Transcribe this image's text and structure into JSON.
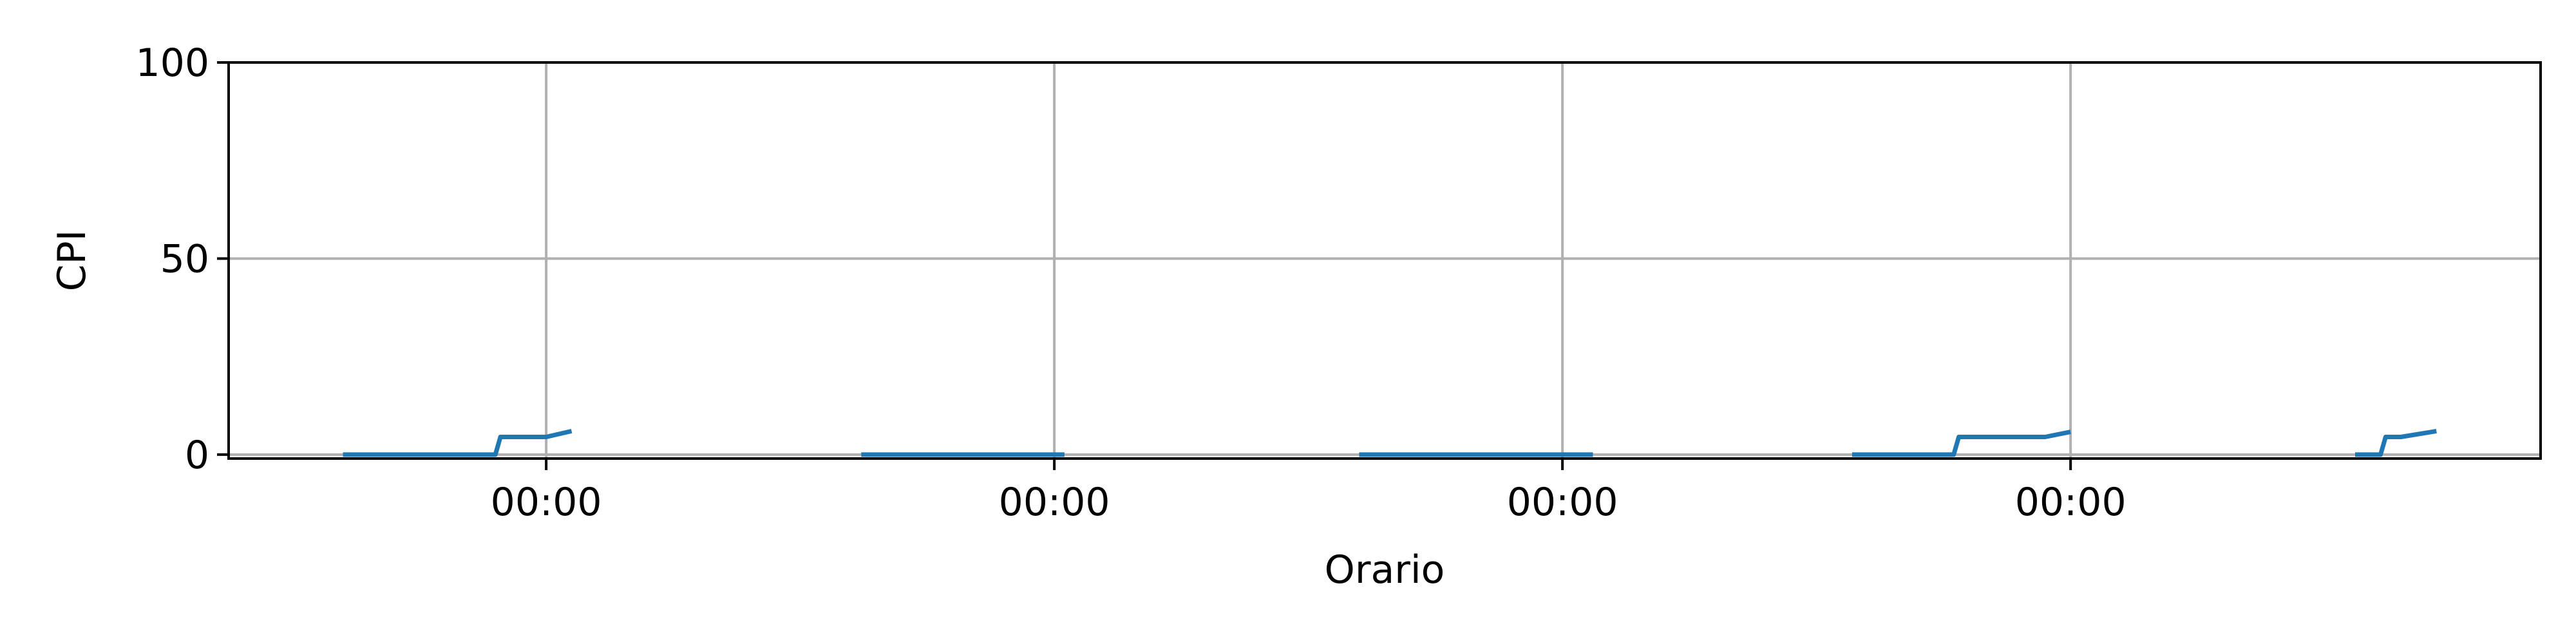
{
  "chart_data": {
    "type": "line",
    "title": "",
    "xlabel": "Orario",
    "ylabel": "CPI",
    "ylim": [
      -1,
      100
    ],
    "yticks": [
      0,
      50,
      100
    ],
    "xlim": [
      -0.625,
      3.925
    ],
    "xticks": [
      0,
      1,
      2,
      3
    ],
    "xticklabels": [
      "00:00",
      "00:00",
      "00:00",
      "00:00"
    ],
    "grid": true,
    "legend": false,
    "line_color": "#1f77b4",
    "series": [
      {
        "segments": [
          [
            [
              -0.4,
              0
            ],
            [
              -0.1,
              0
            ],
            [
              -0.09,
              4.5
            ],
            [
              -0.03,
              4.5
            ],
            [
              0.0,
              4.5
            ],
            [
              0.05,
              6
            ]
          ],
          [
            [
              0.62,
              0
            ],
            [
              1.02,
              0
            ]
          ],
          [
            [
              1.6,
              0
            ],
            [
              2.06,
              0
            ]
          ],
          [
            [
              2.57,
              0
            ],
            [
              2.77,
              0
            ],
            [
              2.78,
              4.5
            ],
            [
              2.95,
              4.5
            ],
            [
              3.0,
              5.8
            ]
          ],
          [
            [
              3.56,
              0
            ],
            [
              3.61,
              0
            ],
            [
              3.62,
              4.5
            ],
            [
              3.65,
              4.5
            ],
            [
              3.72,
              6
            ]
          ]
        ]
      }
    ]
  }
}
